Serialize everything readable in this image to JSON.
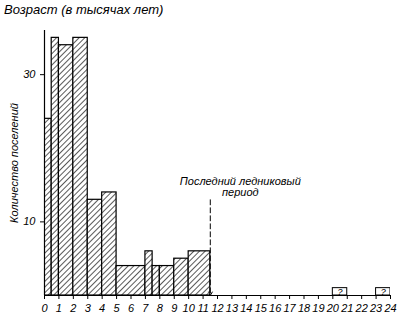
{
  "chart_data": {
    "type": "histogram",
    "title": "Возраст (в тысячах лет)",
    "y_label": "Количество поселений",
    "bins": [
      0,
      0.5,
      1,
      2,
      3,
      4,
      5,
      7,
      7.5,
      8,
      9,
      10,
      11.5
    ],
    "counts": [
      24,
      35,
      34,
      35,
      13,
      14,
      4,
      6,
      4,
      4,
      5,
      6
    ],
    "color": "#000000",
    "uncertain": [
      {
        "x1": 20,
        "x2": 21,
        "value": 1,
        "label": "?"
      },
      {
        "x1": 23,
        "x2": 24,
        "value": 1,
        "label": "?"
      }
    ],
    "annotation": {
      "text": "Последний ледниковый\nпериод",
      "x": 11.5,
      "y": 13
    },
    "xlim": [
      0,
      24
    ],
    "xticks": [
      0,
      1,
      2,
      3,
      4,
      5,
      6,
      7,
      8,
      9,
      10,
      11,
      12,
      13,
      14,
      15,
      16,
      17,
      18,
      19,
      20,
      21,
      22,
      23,
      24
    ],
    "ylim": [
      0,
      36
    ],
    "yticks": [
      10,
      30
    ]
  }
}
